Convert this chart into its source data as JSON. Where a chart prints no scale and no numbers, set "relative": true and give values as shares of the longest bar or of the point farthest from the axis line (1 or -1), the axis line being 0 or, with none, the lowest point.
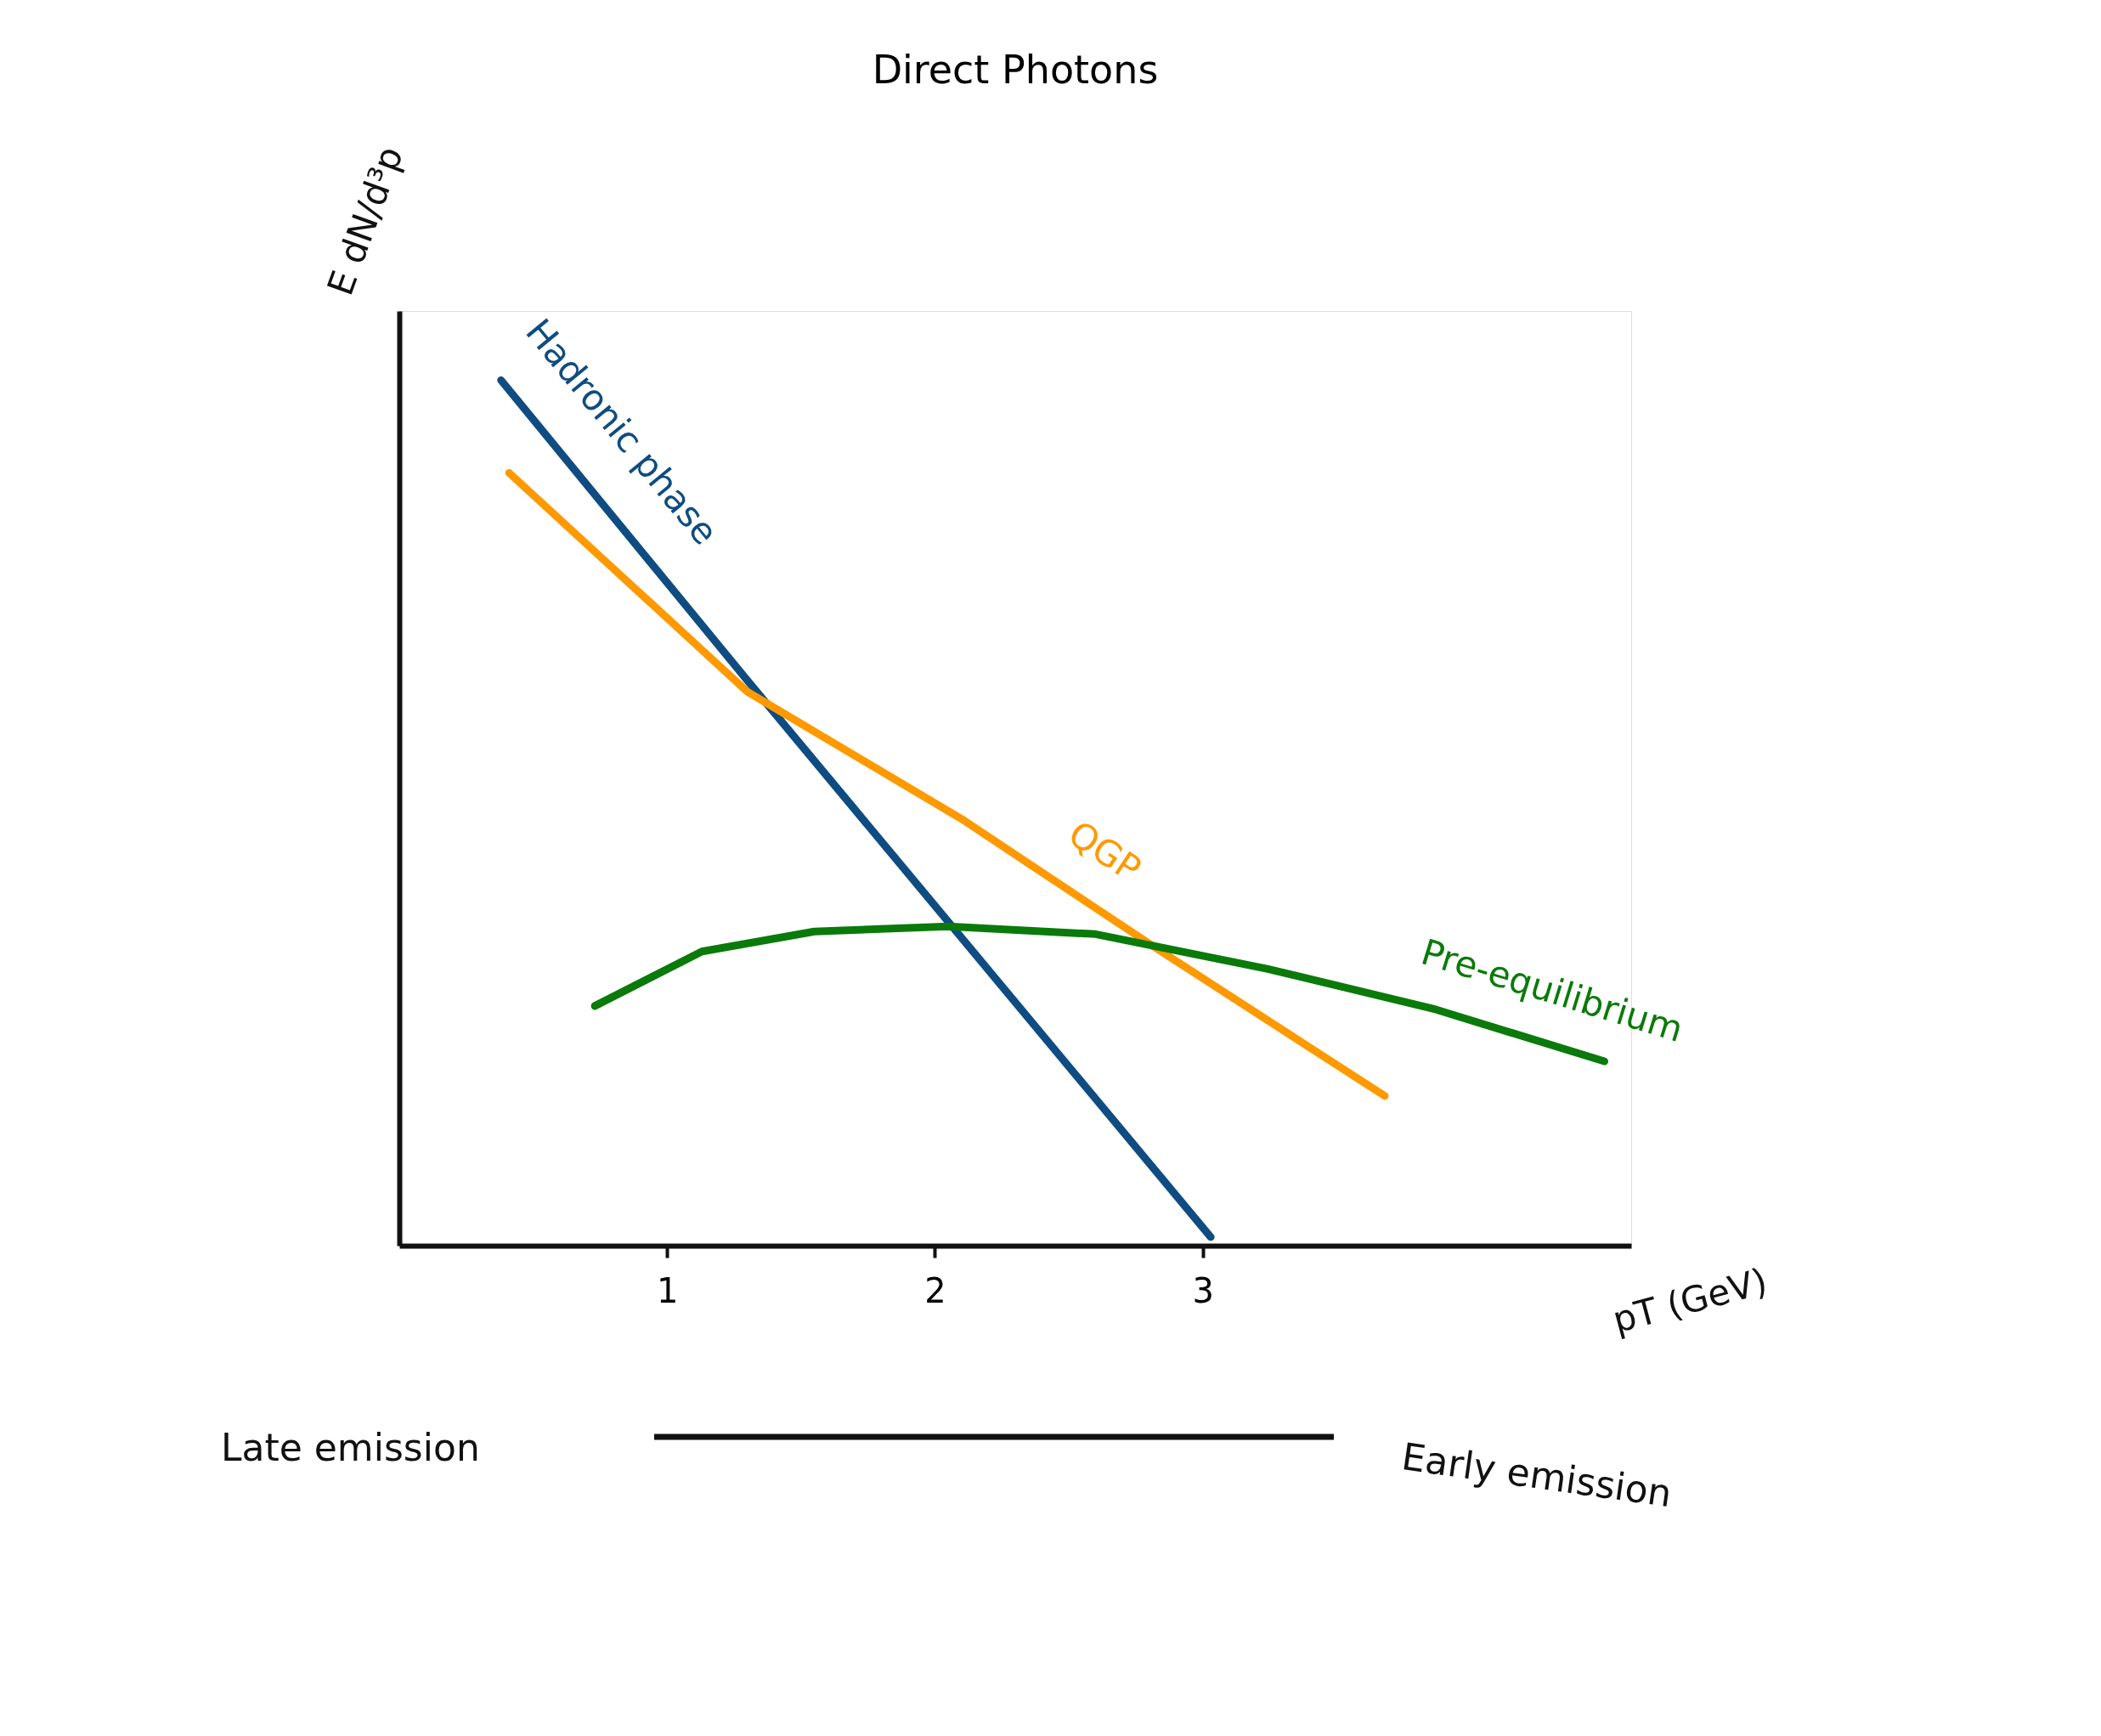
{
  "chart_data": {
    "type": "line",
    "title": "Direct Photons",
    "xlabel": "pT (GeV)",
    "ylabel": "E dN/d³p",
    "relative": true,
    "xlim": [
      0,
      4.6
    ],
    "xticks": [
      1,
      2,
      3
    ],
    "tick_labels": "x",
    "grid": false,
    "legend": false,
    "marker": "none",
    "line_style": "solid",
    "series": [
      {
        "name": "Hadronic phase",
        "color": "#0f4c81",
        "x": [
          0.38,
          1.3,
          3.03
        ],
        "values": [
          1.0,
          0.653,
          0.01
        ]
      },
      {
        "name": "QGP",
        "color": "#ff9900",
        "x": [
          0.41,
          1.3,
          2.1,
          2.81,
          3.68
        ],
        "values": [
          0.893,
          0.64,
          0.493,
          0.347,
          0.173
        ]
      },
      {
        "name": "Pre-equilibrium",
        "color": "#0a7a0a",
        "x": [
          0.73,
          1.13,
          1.55,
          2.05,
          2.6,
          3.24,
          3.87,
          4.5
        ],
        "values": [
          0.277,
          0.34,
          0.363,
          0.369,
          0.36,
          0.32,
          0.273,
          0.213
        ]
      }
    ],
    "annotations": [
      "Late emission",
      "Early emission"
    ]
  }
}
